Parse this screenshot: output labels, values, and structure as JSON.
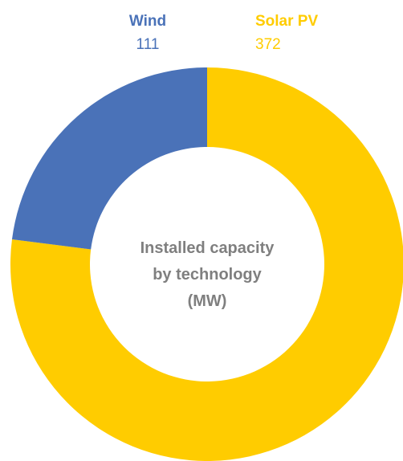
{
  "chart_data": {
    "type": "pie",
    "title": "Installed capacity by technology (MW)",
    "title_lines": [
      "Installed capacity",
      "by technology",
      "(MW)"
    ],
    "donut": true,
    "slices": [
      {
        "label": "Solar PV",
        "value": 372,
        "value_label": "372",
        "color": "#FFCC00"
      },
      {
        "label": "Wind",
        "value": 111,
        "value_label": "111",
        "color": "#4A72B8"
      }
    ],
    "center_text_color": "#7F7F7F"
  }
}
